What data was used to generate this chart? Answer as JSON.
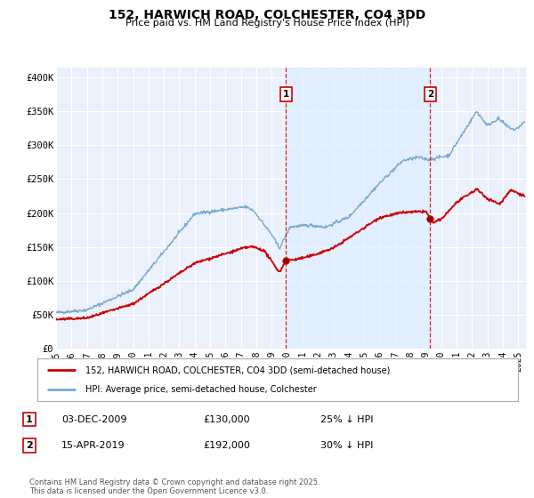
{
  "title": "152, HARWICH ROAD, COLCHESTER, CO4 3DD",
  "subtitle": "Price paid vs. HM Land Registry's House Price Index (HPI)",
  "ylabel_ticks": [
    "£0",
    "£50K",
    "£100K",
    "£150K",
    "£200K",
    "£250K",
    "£300K",
    "£350K",
    "£400K"
  ],
  "ytick_values": [
    0,
    50000,
    100000,
    150000,
    200000,
    250000,
    300000,
    350000,
    400000
  ],
  "ylim": [
    0,
    415000
  ],
  "xlim_start": 1995.0,
  "xlim_end": 2025.5,
  "red_color": "#cc0000",
  "blue_color": "#7aa8cc",
  "fill_color": "#ddeeff",
  "marker1_x": 2009.92,
  "marker2_x": 2019.29,
  "marker1_label": "1",
  "marker2_label": "2",
  "legend_entry1": "152, HARWICH ROAD, COLCHESTER, CO4 3DD (semi-detached house)",
  "legend_entry2": "HPI: Average price, semi-detached house, Colchester",
  "table_row1_num": "1",
  "table_row1_date": "03-DEC-2009",
  "table_row1_price": "£130,000",
  "table_row1_hpi": "25% ↓ HPI",
  "table_row2_num": "2",
  "table_row2_date": "15-APR-2019",
  "table_row2_price": "£192,000",
  "table_row2_hpi": "30% ↓ HPI",
  "footnote": "Contains HM Land Registry data © Crown copyright and database right 2025.\nThis data is licensed under the Open Government Licence v3.0.",
  "bg_color": "#ffffff",
  "plot_bg_color": "#eaf1fb",
  "grid_color": "#ffffff"
}
